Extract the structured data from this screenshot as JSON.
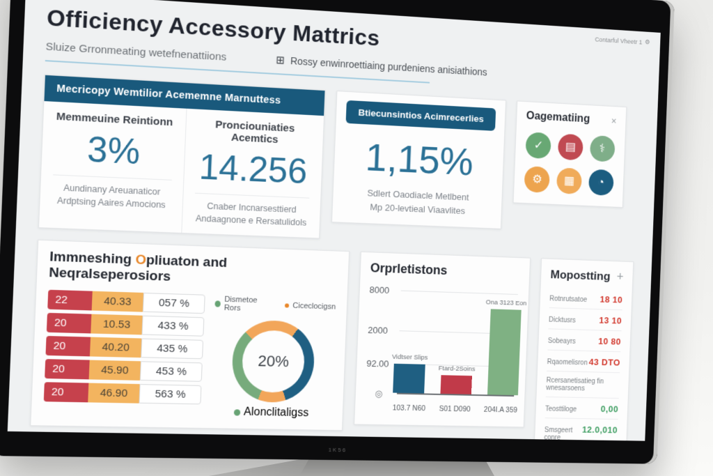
{
  "bezel": {
    "label": "1K56"
  },
  "header": {
    "title": "Officiency Accessory Mattrics",
    "subtitle": "Sluize Grronmeating wetefnenattiions",
    "nav_link": "Rossy enwinroettiaing purdeniens anisiathions",
    "account": "Contarful Vheetr 1",
    "icons": {
      "grid": "⊞",
      "gear": "⚙"
    }
  },
  "metrics": {
    "banner": "Mecricopy Wemtilior Acememne Marnuttess",
    "cards": [
      {
        "label": "Memmeuine Reintionn",
        "value": "3%",
        "sub1": "Aundinany Areuanaticor",
        "sub2": "Ardptsing Aaires Amocions"
      },
      {
        "label": "Pronciouniaties Acemtics",
        "value": "14.256",
        "sub1": "Cnaber Incnarsesttierd",
        "sub2": "Andaagnone e Rersatulidols"
      }
    ],
    "highlight": {
      "banner": "Btiecunsintios Acimrecerlies",
      "value": "1,15%",
      "sub1": "Sdlert Oaodiacle Metlbent",
      "sub2": "Mp 20-levtieal Viaavlites"
    },
    "shortcuts": {
      "title": "Oagematiing",
      "close": "×",
      "icons": [
        {
          "name": "clipboard-check-icon",
          "glyph": "✓",
          "color": "#68a874"
        },
        {
          "name": "receipt-icon",
          "glyph": "▤",
          "color": "#c04a52"
        },
        {
          "name": "stethoscope-icon",
          "glyph": "⚕",
          "color": "#7fae89"
        },
        {
          "name": "gear-icon",
          "glyph": "⚙",
          "color": "#eda44e"
        },
        {
          "name": "map-icon",
          "glyph": "▦",
          "color": "#f0ab5a"
        },
        {
          "name": "clock-icon",
          "glyph": "◔",
          "color": "#1c5d80"
        }
      ]
    }
  },
  "table_section": {
    "title_prefix": "Immneshing ",
    "title_o": "O",
    "title_suffix": "pliuaton and Neqralseperosiors",
    "rows": [
      [
        "22",
        "40.33",
        "057 %"
      ],
      [
        "20",
        "10.53",
        "433 %"
      ],
      [
        "20",
        "40.20",
        "435 %"
      ],
      [
        "20",
        "45.90",
        "453 %"
      ],
      [
        "20",
        "46.90",
        "563 %"
      ]
    ],
    "legend_left": "Dismetoe Rors",
    "legend_right": "Ciceclocigsn",
    "legend_bottom": "Alonclitaligss",
    "donut_center": "20%"
  },
  "bar_section": {
    "title": "Orprletistons",
    "y_ticks": [
      "8000",
      "2000",
      "92.00"
    ],
    "origin_icon": "◎"
  },
  "side_panel": {
    "title": "Mopostting",
    "add": "+",
    "rows": [
      {
        "label": "Rotnrutsatoe",
        "value": "18 10"
      },
      {
        "label": "Dicktusrs",
        "value": "13 10"
      },
      {
        "label": "Sobeayrs",
        "value": "10 80"
      },
      {
        "label": "Rqaomelisron",
        "value": "43 DTO"
      },
      {
        "label": "Rcersanetisatieg fin wnesarsoens",
        "value": ""
      },
      {
        "label": "Teosttiloge",
        "value": "0,00"
      },
      {
        "label": "Smsgeert conre",
        "value": "12.0,010"
      }
    ]
  },
  "colors": {
    "banner_blue": "#19597c",
    "metric_blue": "#2b7196",
    "table_red": "#c6414c",
    "table_orange": "#f3b45f",
    "value_red": "#d2392e",
    "value_green": "#3f9e62"
  },
  "chart_data": [
    {
      "type": "pie",
      "subtype": "donut",
      "center_label": "20%",
      "legend": [
        "Dismetoe Rors",
        "Ciceclocigsn",
        "Alonclitaligss"
      ],
      "segments": [
        {
          "color": "#f2a65a",
          "deg": 35
        },
        {
          "color": "#1f5f82",
          "deg": 125
        },
        {
          "color": "#f2a65a",
          "deg": 40
        },
        {
          "color": "#77ab7c",
          "deg": 115
        },
        {
          "color": "#f2a65a",
          "deg": 45
        }
      ]
    },
    {
      "type": "bar",
      "title": "Orprletistons",
      "categories": [
        "103.7 N60",
        "S01 D090",
        "204I.A 359"
      ],
      "values": [
        800,
        500,
        2350
      ],
      "ylim": [
        0,
        2600
      ],
      "y_tick_labels": [
        "8000",
        "2000",
        "92.00"
      ],
      "bar_labels": [
        "Vidtser Slips",
        "Ftard-2Soins",
        "Ona 3123 Eon"
      ],
      "colors": [
        "#1f5f82",
        "#c13a49",
        "#7fb183"
      ],
      "xlabel": "",
      "ylabel": "",
      "grid": true,
      "legend_position": "none"
    }
  ]
}
